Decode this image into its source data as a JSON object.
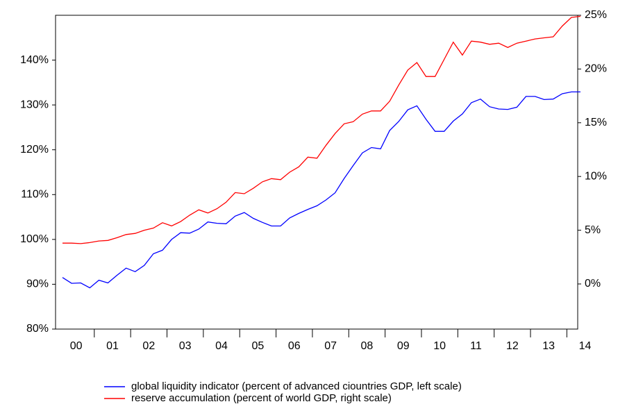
{
  "chart_data": {
    "type": "line",
    "categories": [
      null,
      "00",
      null,
      null,
      null,
      "01",
      null,
      null,
      null,
      "02",
      null,
      null,
      null,
      "03",
      null,
      null,
      null,
      "04",
      null,
      null,
      null,
      "05",
      null,
      null,
      null,
      "06",
      null,
      null,
      null,
      "07",
      null,
      null,
      null,
      "08",
      null,
      null,
      null,
      "09",
      null,
      null,
      null,
      "10",
      null,
      null,
      null,
      "11",
      null,
      null,
      null,
      "12",
      null,
      null,
      null,
      "13",
      null,
      null,
      null,
      "14"
    ],
    "series": [
      {
        "name": "global liquidity indicator (percent of advanced ciountries GDP, left scale)",
        "color": "#0000ff",
        "axis": "y",
        "values": [
          91.5,
          90.2,
          90.3,
          89.2,
          90.9,
          90.3,
          92.0,
          93.6,
          92.8,
          94.2,
          96.8,
          97.6,
          100.0,
          101.5,
          101.4,
          102.3,
          103.9,
          103.6,
          103.5,
          105.2,
          106.0,
          104.7,
          103.8,
          103.0,
          103.0,
          104.8,
          105.8,
          106.7,
          107.5,
          108.8,
          110.4,
          113.6,
          116.5,
          119.3,
          120.5,
          120.2,
          124.3,
          126.3,
          128.9,
          129.8,
          126.8,
          124.1,
          124.1,
          126.4,
          128.0,
          130.5,
          131.3,
          129.6,
          129.1,
          129.0,
          129.5,
          131.9,
          131.9,
          131.2,
          131.3,
          132.5,
          132.9,
          132.9
        ]
      },
      {
        "name": "reserve accumulation (percent of world GDP, right scale)",
        "color": "#ff0000",
        "axis": "y2",
        "values": [
          3.8,
          3.8,
          3.75,
          3.85,
          4.0,
          4.05,
          4.3,
          4.6,
          4.7,
          5.0,
          5.2,
          5.7,
          5.4,
          5.8,
          6.4,
          6.9,
          6.6,
          7.0,
          7.6,
          8.5,
          8.4,
          8.9,
          9.5,
          9.8,
          9.7,
          10.4,
          10.9,
          11.8,
          11.7,
          12.9,
          14.0,
          14.9,
          15.1,
          15.8,
          16.1,
          16.1,
          17.0,
          18.5,
          19.9,
          20.6,
          19.3,
          19.3,
          20.9,
          22.5,
          21.3,
          22.6,
          22.5,
          22.3,
          22.4,
          22.0,
          22.4,
          22.6,
          22.8,
          22.9,
          23.0,
          24.0,
          24.8,
          24.9
        ]
      }
    ],
    "ylim": [
      80,
      150
    ],
    "yticks": [
      {
        "value": 80,
        "label": "80%"
      },
      {
        "value": 90,
        "label": "90%"
      },
      {
        "value": 100,
        "label": "100%"
      },
      {
        "value": 110,
        "label": "110%"
      },
      {
        "value": 120,
        "label": "120%"
      },
      {
        "value": 130,
        "label": "130%"
      },
      {
        "value": 140,
        "label": "140%"
      }
    ],
    "y2lim": [
      -4.2,
      25
    ],
    "y2ticks": [
      {
        "value": 0,
        "label": "0%"
      },
      {
        "value": 5,
        "label": "5%"
      },
      {
        "value": 10,
        "label": "10%"
      },
      {
        "value": 15,
        "label": "15%"
      },
      {
        "value": 20,
        "label": "20%"
      },
      {
        "value": 25,
        "label": "25%"
      }
    ],
    "grid": false
  }
}
